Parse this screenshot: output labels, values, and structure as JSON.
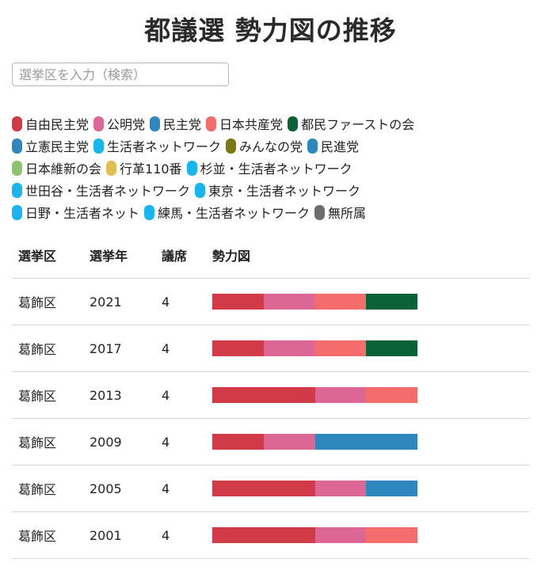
{
  "title": "都議選 勢力図の推移",
  "search": {
    "placeholder": "選挙区を入力（検索）",
    "value": ""
  },
  "legend_rows": [
    [
      {
        "label": "自由民主党",
        "color": "#d13b47"
      },
      {
        "label": "公明党",
        "color": "#dc6694"
      },
      {
        "label": "民主党",
        "color": "#2f87c0"
      },
      {
        "label": "日本共産党",
        "color": "#f56c6c"
      },
      {
        "label": "都民ファーストの会",
        "color": "#0a6236"
      }
    ],
    [
      {
        "label": "立憲民主党",
        "color": "#2f87c0"
      },
      {
        "label": "生活者ネットワーク",
        "color": "#18b5ee"
      },
      {
        "label": "みんなの党",
        "color": "#7a7a12"
      },
      {
        "label": "民進党",
        "color": "#2f87c0"
      }
    ],
    [
      {
        "label": "日本維新の会",
        "color": "#8dc46b"
      },
      {
        "label": "行革110番",
        "color": "#dfbf55"
      },
      {
        "label": "杉並・生活者ネットワーク",
        "color": "#18b5ee"
      }
    ],
    [
      {
        "label": "世田谷・生活者ネットワーク",
        "color": "#18b5ee"
      },
      {
        "label": "東京・生活者ネットワーク",
        "color": "#18b5ee"
      }
    ],
    [
      {
        "label": "日野・生活者ネット",
        "color": "#18b5ee"
      },
      {
        "label": "練馬・生活者ネットワーク",
        "color": "#18b5ee"
      },
      {
        "label": "無所属",
        "color": "#6d6d6d"
      }
    ]
  ],
  "table": {
    "headers": [
      "選挙区",
      "選挙年",
      "議席",
      "勢力図"
    ],
    "rows": [
      {
        "district": "葛飾区",
        "year": "2021",
        "seats": "4",
        "parties": [
          "自由民主党",
          "公明党",
          "日本共産党",
          "都民ファーストの会"
        ]
      },
      {
        "district": "葛飾区",
        "year": "2017",
        "seats": "4",
        "parties": [
          "自由民主党",
          "公明党",
          "日本共産党",
          "都民ファーストの会"
        ]
      },
      {
        "district": "葛飾区",
        "year": "2013",
        "seats": "4",
        "parties": [
          "自由民主党",
          "自由民主党",
          "公明党",
          "日本共産党"
        ]
      },
      {
        "district": "葛飾区",
        "year": "2009",
        "seats": "4",
        "parties": [
          "自由民主党",
          "公明党",
          "民主党",
          "民主党"
        ]
      },
      {
        "district": "葛飾区",
        "year": "2005",
        "seats": "4",
        "parties": [
          "自由民主党",
          "自由民主党",
          "公明党",
          "民主党"
        ]
      },
      {
        "district": "葛飾区",
        "year": "2001",
        "seats": "4",
        "parties": [
          "自由民主党",
          "自由民主党",
          "公明党",
          "日本共産党"
        ]
      }
    ]
  }
}
